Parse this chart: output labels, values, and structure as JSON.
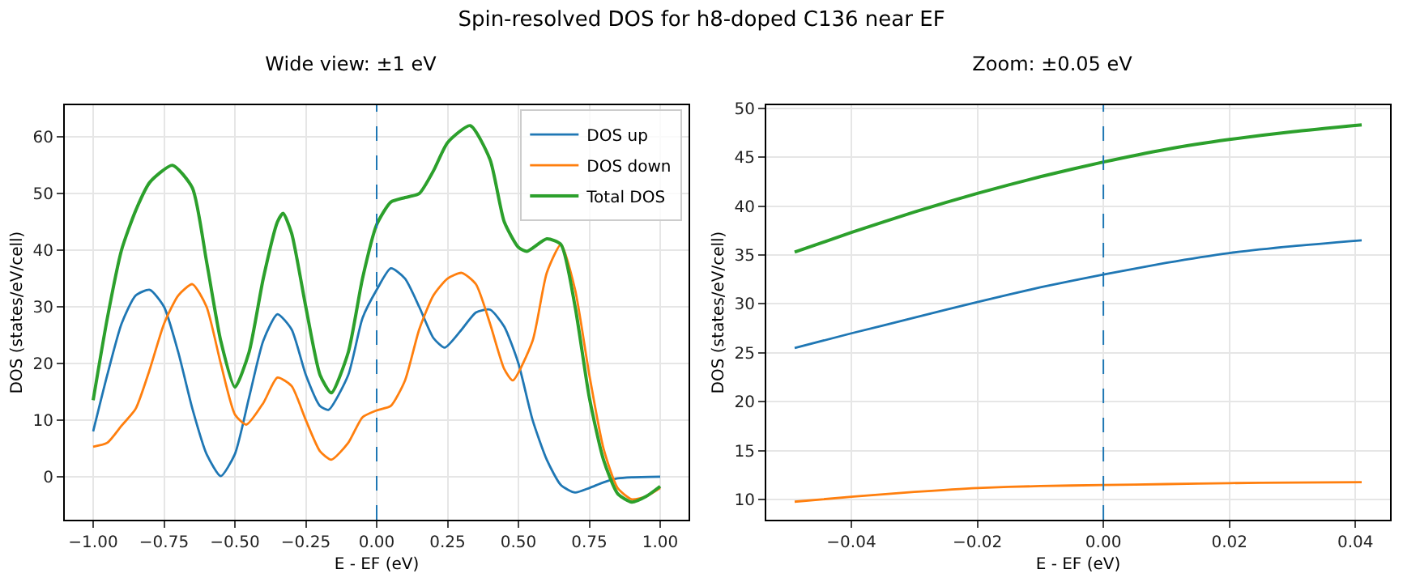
{
  "chart_data": [
    {
      "type": "line",
      "title": "Wide view: ±1 eV",
      "annotations": [
        "Spin-resolved DOS for h8-doped C136 near EF"
      ],
      "xlabel": "E - EF (eV)",
      "ylabel": "DOS (states/eV/cell)",
      "xlim": [
        -1.1,
        1.1
      ],
      "xticks": [
        {
          "value": -1,
          "label": "−1.00"
        },
        {
          "value": -0.75,
          "label": "−0.75"
        },
        {
          "value": -0.5,
          "label": "−0.50"
        },
        {
          "value": -0.25,
          "label": "−0.25"
        },
        {
          "value": 0,
          "label": "0.00"
        },
        {
          "value": 0.25,
          "label": "0.25"
        },
        {
          "value": 0.5,
          "label": "0.50"
        },
        {
          "value": 0.75,
          "label": "0.75"
        },
        {
          "value": 1,
          "label": "1.00"
        }
      ],
      "ylim": [
        -7.6,
        65.6
      ],
      "yticks": [
        0,
        10,
        20,
        30,
        40,
        50,
        60
      ],
      "grid": true,
      "legend": "top right",
      "ref_lines": [
        {
          "axis": "x",
          "value": 0,
          "color": "#1f77b4",
          "line_style": "dashed"
        }
      ],
      "series": [
        {
          "name": "DOS up",
          "color": "#1f77b4",
          "x": [
            -1,
            -0.95,
            -0.9,
            -0.85,
            -0.8,
            -0.75,
            -0.7,
            -0.65,
            -0.6,
            -0.55,
            -0.5,
            -0.45,
            -0.4,
            -0.35,
            -0.3,
            -0.25,
            -0.2,
            -0.17,
            -0.1,
            -0.05,
            0,
            0.05,
            0.1,
            0.15,
            0.2,
            0.24,
            0.3,
            0.35,
            0.4,
            0.45,
            0.5,
            0.55,
            0.6,
            0.65,
            0.7,
            0.75,
            0.8,
            0.85,
            0.9,
            1
          ],
          "values": [
            8,
            18,
            27,
            32,
            33,
            30,
            22,
            12,
            4,
            0.1,
            4,
            14,
            24,
            28.7,
            26,
            18,
            12.5,
            11.8,
            18,
            28,
            33,
            36.8,
            35,
            30,
            24.5,
            22.8,
            26,
            29,
            29.5,
            26.5,
            20,
            10,
            3,
            -1.5,
            -2.8,
            -2,
            -1,
            -0.3,
            -0.1,
            0
          ]
        },
        {
          "name": "DOS down",
          "color": "#ff7f0e",
          "x": [
            -1,
            -0.95,
            -0.9,
            -0.85,
            -0.8,
            -0.75,
            -0.7,
            -0.65,
            -0.6,
            -0.55,
            -0.5,
            -0.46,
            -0.4,
            -0.35,
            -0.3,
            -0.25,
            -0.2,
            -0.16,
            -0.1,
            -0.05,
            0,
            0.05,
            0.1,
            0.15,
            0.2,
            0.25,
            0.3,
            0.35,
            0.4,
            0.45,
            0.48,
            0.55,
            0.6,
            0.65,
            0.7,
            0.75,
            0.8,
            0.85,
            0.9,
            0.95,
            1
          ],
          "values": [
            5.3,
            6,
            9,
            12,
            19,
            27,
            32,
            34,
            30,
            20,
            11,
            9.2,
            13,
            17.5,
            16,
            10,
            4.5,
            3,
            6,
            10.5,
            11.7,
            12.5,
            17,
            26,
            32,
            35,
            36,
            34,
            27,
            19,
            17,
            24,
            36,
            41,
            33,
            18,
            5,
            -2,
            -4,
            -3.5,
            -2
          ]
        },
        {
          "name": "Total DOS",
          "color": "#2ca02c",
          "x": [
            -1,
            -0.95,
            -0.9,
            -0.85,
            -0.8,
            -0.72,
            -0.65,
            -0.6,
            -0.55,
            -0.5,
            -0.45,
            -0.4,
            -0.35,
            -0.33,
            -0.3,
            -0.25,
            -0.2,
            -0.16,
            -0.1,
            -0.05,
            0,
            0.05,
            0.1,
            0.15,
            0.2,
            0.25,
            0.33,
            0.4,
            0.45,
            0.5,
            0.53,
            0.6,
            0.65,
            0.7,
            0.75,
            0.8,
            0.85,
            0.9,
            0.95,
            1
          ],
          "values": [
            13.5,
            28,
            40,
            47,
            52,
            55,
            51,
            38,
            24,
            15.8,
            22,
            35,
            45,
            46.5,
            43,
            30,
            18,
            14.8,
            22,
            35,
            44.5,
            48.5,
            49.3,
            50,
            54,
            59,
            62,
            56,
            45,
            40.5,
            39.8,
            42,
            41,
            30,
            14,
            3,
            -3,
            -4.5,
            -3.5,
            -1.7
          ]
        }
      ]
    },
    {
      "type": "line",
      "title": "Zoom: ±0.05 eV",
      "xlabel": "E - EF (eV)",
      "ylabel": "DOS (states/eV/cell)",
      "xlim": [
        -0.0535,
        0.0455
      ],
      "xticks": [
        {
          "value": -0.04,
          "label": "−0.04"
        },
        {
          "value": -0.02,
          "label": "−0.02"
        },
        {
          "value": 0,
          "label": "0.00"
        },
        {
          "value": 0.02,
          "label": "0.02"
        },
        {
          "value": 0.04,
          "label": "0.04"
        }
      ],
      "ylim": [
        7.96,
        50.3
      ],
      "yticks": [
        10,
        15,
        20,
        25,
        30,
        35,
        40,
        45,
        50
      ],
      "grid": true,
      "ref_lines": [
        {
          "axis": "x",
          "value": 0,
          "color": "#1f77b4",
          "line_style": "dashed"
        }
      ],
      "series": [
        {
          "color": "#1f77b4",
          "x": [
            -0.049,
            -0.04,
            -0.03,
            -0.02,
            -0.01,
            0,
            0.01,
            0.02,
            0.03,
            0.041
          ],
          "values": [
            25.5,
            27,
            28.6,
            30.2,
            31.7,
            33,
            34.2,
            35.2,
            35.9,
            36.5
          ]
        },
        {
          "color": "#ff7f0e",
          "x": [
            -0.049,
            -0.04,
            -0.03,
            -0.02,
            -0.01,
            0,
            0.01,
            0.02,
            0.03,
            0.041
          ],
          "values": [
            9.8,
            10.3,
            10.8,
            11.2,
            11.4,
            11.5,
            11.6,
            11.7,
            11.75,
            11.8
          ]
        },
        {
          "color": "#2ca02c",
          "x": [
            -0.049,
            -0.04,
            -0.03,
            -0.02,
            -0.01,
            0,
            0.01,
            0.02,
            0.03,
            0.041
          ],
          "values": [
            35.3,
            37.3,
            39.4,
            41.3,
            43,
            44.5,
            45.8,
            46.8,
            47.6,
            48.3
          ]
        }
      ]
    }
  ]
}
